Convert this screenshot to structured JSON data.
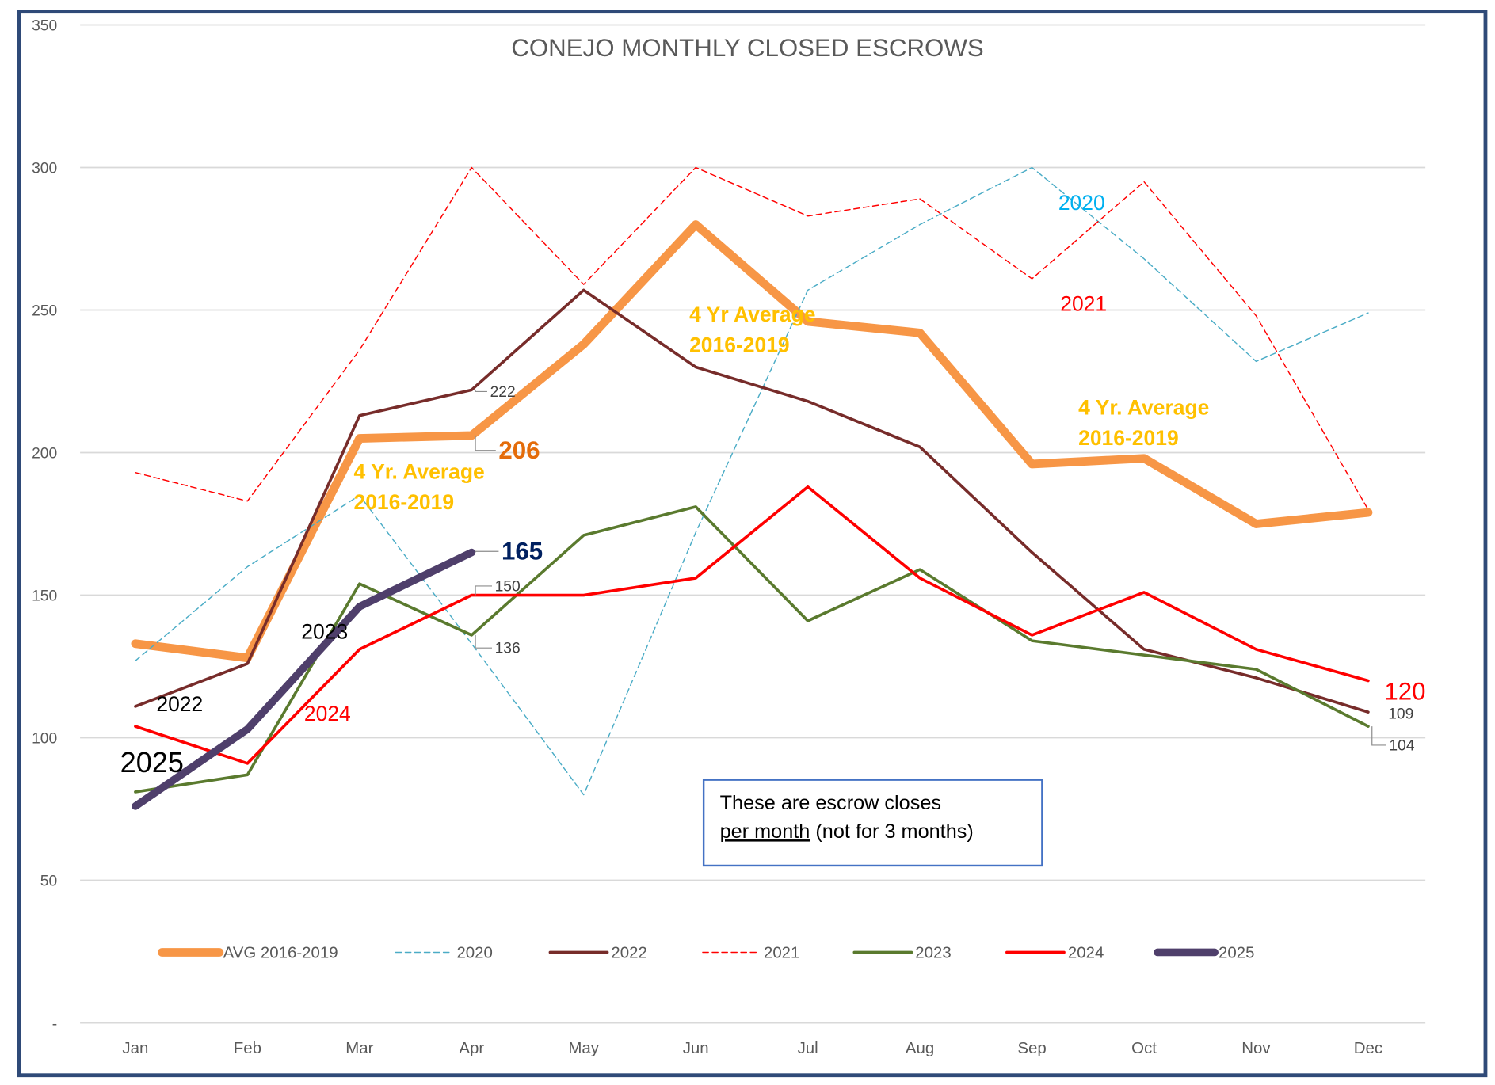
{
  "chart_data": {
    "type": "line",
    "title": "CONEJO MONTHLY CLOSED ESCROWS",
    "categories": [
      "Jan",
      "Feb",
      "Mar",
      "Apr",
      "May",
      "Jun",
      "Jul",
      "Aug",
      "Sep",
      "Oct",
      "Nov",
      "Dec"
    ],
    "ylim": [
      0,
      350
    ],
    "yticks": [
      {
        "value": 0,
        "label": "-"
      },
      50,
      100,
      150,
      200,
      250,
      300,
      350
    ],
    "grid": true,
    "legend": "bottom",
    "series": [
      {
        "name": "AVG 2016-2019",
        "color": "#f79646",
        "values": [
          133,
          128,
          205,
          206,
          238,
          280,
          246,
          242,
          196,
          198,
          175,
          179
        ]
      },
      {
        "name": "2020",
        "color": "#4bacc6",
        "dashed": true,
        "values": [
          127,
          160,
          185,
          133,
          80,
          172,
          257,
          280,
          300,
          268,
          232,
          249
        ]
      },
      {
        "name": "2022",
        "color": "#772c2a",
        "values": [
          111,
          126,
          213,
          222,
          257,
          230,
          218,
          202,
          165,
          131,
          121,
          109
        ]
      },
      {
        "name": "2021",
        "color": "#ff0000",
        "dashed": true,
        "values": [
          193,
          183,
          236,
          300,
          259,
          300,
          283,
          289,
          261,
          295,
          248,
          180
        ]
      },
      {
        "name": "2023",
        "color": "#5a7a2e",
        "values": [
          81,
          87,
          154,
          136,
          171,
          181,
          141,
          159,
          134,
          129,
          124,
          104
        ]
      },
      {
        "name": "2024",
        "color": "#ff0000",
        "values": [
          104,
          91,
          131,
          150,
          150,
          156,
          188,
          156,
          136,
          151,
          131,
          120
        ]
      },
      {
        "name": "2025",
        "color": "#4f3f6b",
        "values": [
          76,
          103,
          146,
          165,
          null,
          null,
          null,
          null,
          null,
          null,
          null,
          null
        ]
      }
    ],
    "annotations": [
      {
        "lines": [
          "2020"
        ]
      },
      {
        "lines": [
          "2021"
        ]
      },
      {
        "lines": [
          "4 Yr Average",
          "2016-2019"
        ]
      },
      {
        "lines": [
          "4 Yr. Average",
          "2016-2019"
        ]
      },
      {
        "lines": [
          "4 Yr. Average",
          "2016-2019"
        ]
      },
      {
        "lines": [
          "2022"
        ]
      },
      {
        "lines": [
          "2023"
        ]
      },
      {
        "lines": [
          "2024"
        ]
      },
      {
        "lines": [
          "2025"
        ]
      }
    ],
    "note": [
      "These are escrow closes",
      "per month",
      "(not for 3 months)"
    ]
  }
}
